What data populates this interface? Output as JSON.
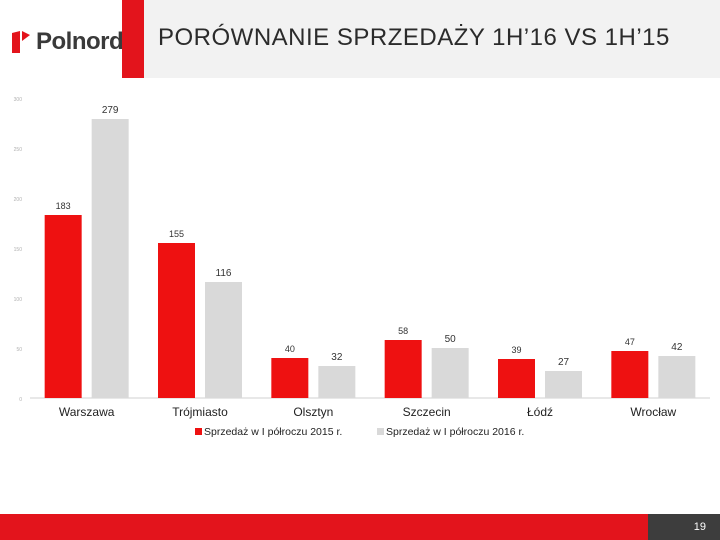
{
  "brand": {
    "name": "Polnord",
    "accent": "#e3141c"
  },
  "slide": {
    "title": "PORÓWNANIE SPRZEDAŻY 1H’16 VS 1H’15",
    "page_number": "19"
  },
  "chart_data": {
    "type": "bar",
    "categories": [
      "Warszawa",
      "Trójmiasto",
      "Olsztyn",
      "Szczecin",
      "Łódź",
      "Wrocław"
    ],
    "series": [
      {
        "name": "Sprzedaż w I półroczu 2015 r.",
        "color": "#ee1111",
        "values": [
          183,
          155,
          40,
          58,
          39,
          47
        ]
      },
      {
        "name": "Sprzedaż w I półroczu 2016 r.",
        "color": "#d9d9d9",
        "values": [
          279,
          116,
          32,
          50,
          27,
          42
        ]
      }
    ],
    "ylim": [
      0,
      300
    ],
    "yticks": [
      0,
      50,
      100,
      150,
      200,
      250,
      300
    ],
    "grid": false,
    "legend": "bottom"
  }
}
